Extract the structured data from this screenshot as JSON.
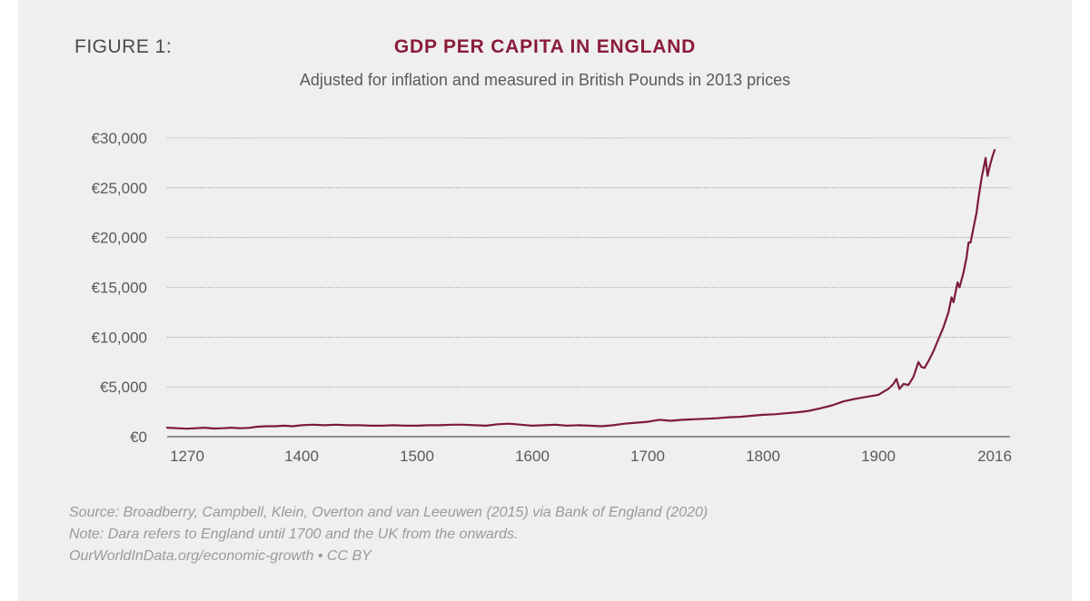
{
  "figure_label": "FIGURE 1:",
  "colors": {
    "line": "#7d1b39",
    "title": "#8a1c3a",
    "grid": "#9a9a9a",
    "axis": "#555555",
    "text": "#5a5a5a",
    "background": "#efefef"
  },
  "notes": [
    "Source: Broadberry, Campbell, Klein, Overton and van Leeuwen (2015) via Bank of England (2020)",
    "Note: Dara refers to England until 1700 and the UK from the onwards.",
    "OurWorldInData.org/economic-growth • CC BY"
  ],
  "chart_data": {
    "type": "line",
    "title": "GDP PER CAPITA IN ENGLAND",
    "subtitle": "Adjusted for inflation and measured in British Pounds in 2013 prices",
    "xlabel": "",
    "ylabel": "",
    "xlim": [
      1270,
      2016
    ],
    "ylim": [
      0,
      30000
    ],
    "grid": true,
    "x_ticks": [
      1270,
      1400,
      1500,
      1600,
      1700,
      1800,
      1900,
      2016
    ],
    "x_tick_labels": [
      "1270",
      "1400",
      "1500",
      "1600",
      "1700",
      "1800",
      "1900",
      "2016"
    ],
    "y_ticks": [
      0,
      5000,
      10000,
      15000,
      20000,
      25000,
      30000
    ],
    "y_tick_labels": [
      "€0",
      "€5,000",
      "€10,000",
      "€15,000",
      "€20,000",
      "€25,000",
      "€30,000"
    ],
    "series": [
      {
        "name": "GDP per capita",
        "x": [
          1250,
          1260,
          1270,
          1280,
          1290,
          1300,
          1310,
          1320,
          1330,
          1340,
          1350,
          1360,
          1370,
          1380,
          1390,
          1400,
          1410,
          1420,
          1430,
          1440,
          1450,
          1460,
          1470,
          1480,
          1490,
          1500,
          1510,
          1520,
          1530,
          1540,
          1550,
          1560,
          1570,
          1580,
          1590,
          1600,
          1610,
          1620,
          1630,
          1640,
          1650,
          1660,
          1670,
          1680,
          1690,
          1700,
          1710,
          1720,
          1730,
          1740,
          1750,
          1760,
          1770,
          1780,
          1790,
          1800,
          1810,
          1820,
          1830,
          1840,
          1850,
          1860,
          1870,
          1880,
          1890,
          1900,
          1905,
          1910,
          1915,
          1918,
          1921,
          1925,
          1930,
          1935,
          1940,
          1943,
          1946,
          1950,
          1955,
          1960,
          1965,
          1970,
          1973,
          1975,
          1979,
          1981,
          1985,
          1988,
          1990,
          1992,
          1995,
          1998,
          2000,
          2003,
          2005,
          2007,
          2008,
          2009,
          2010,
          2012,
          2014,
          2016
        ],
        "values": [
          900,
          850,
          800,
          850,
          900,
          820,
          850,
          900,
          850,
          880,
          1000,
          1050,
          1050,
          1100,
          1050,
          1150,
          1200,
          1150,
          1200,
          1150,
          1150,
          1100,
          1100,
          1150,
          1100,
          1100,
          1150,
          1150,
          1200,
          1200,
          1150,
          1100,
          1250,
          1300,
          1200,
          1100,
          1150,
          1200,
          1100,
          1150,
          1100,
          1050,
          1150,
          1300,
          1400,
          1500,
          1700,
          1600,
          1700,
          1750,
          1800,
          1850,
          1950,
          2000,
          2100,
          2200,
          2250,
          2350,
          2450,
          2600,
          2850,
          3150,
          3550,
          3800,
          4000,
          4200,
          4500,
          4800,
          5300,
          5800,
          4800,
          5300,
          5200,
          6000,
          7500,
          7000,
          6900,
          7600,
          8600,
          9800,
          11000,
          12500,
          14000,
          13500,
          15500,
          15000,
          16500,
          18000,
          19500,
          19500,
          21000,
          22500,
          24000,
          26000,
          27000,
          28000,
          27000,
          26200,
          26700,
          27500,
          28200,
          28800
        ]
      }
    ]
  }
}
